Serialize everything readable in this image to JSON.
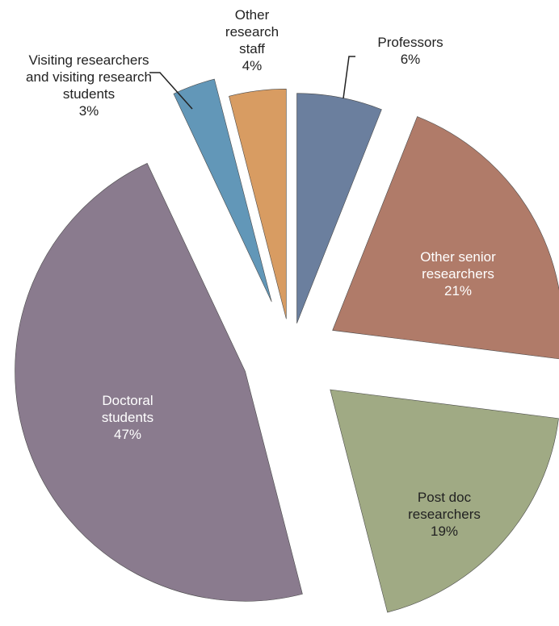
{
  "chart_data": {
    "type": "pie",
    "categories": [
      "Professors",
      "Other senior researchers",
      "Post doc researchers",
      "Doctoral students",
      "Visiting researchers and visiting research students",
      "Other research staff"
    ],
    "values": [
      6,
      21,
      19,
      47,
      3,
      4
    ],
    "value_labels": [
      "6%",
      "21%",
      "19%",
      "47%",
      "3%",
      "4%"
    ],
    "colors": [
      "#6b7f9e",
      "#b07b69",
      "#a0aa84",
      "#8a7b8e",
      "#6297b8",
      "#d89c62"
    ]
  }
}
